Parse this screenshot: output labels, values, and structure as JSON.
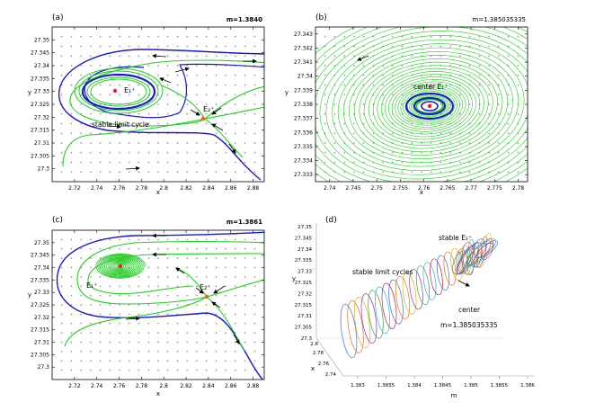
{
  "colors": {
    "green": "#22cc22",
    "blue": "#1a1acc",
    "red": "#ee2222",
    "orange": "#ee6600",
    "arrow": "#000000",
    "grid": "#8a8a8a",
    "frame": "#000000"
  },
  "chart_data": [
    {
      "id": "a",
      "type": "line",
      "label": "(a)",
      "param": "m=1.3840",
      "xlabel": "x",
      "ylabel": "y",
      "xlim": [
        2.7,
        2.89
      ],
      "ylim": [
        27.295,
        27.355
      ],
      "xticks": [
        "2.72",
        "2.74",
        "2.76",
        "2.78",
        "2.8",
        "2.82",
        "2.84",
        "2.86",
        "2.88"
      ],
      "yticks": [
        "27.3",
        "27.305",
        "27.31",
        "27.315",
        "27.32",
        "27.325",
        "27.33",
        "27.335",
        "27.34",
        "27.345",
        "27.35"
      ],
      "annotations": [
        "E₁⁺",
        "E₂⁺",
        "stable limit cycle"
      ],
      "points": {
        "E1": [
          2.762,
          27.328
        ],
        "E2": [
          2.838,
          27.3215
        ]
      }
    },
    {
      "id": "b",
      "type": "line",
      "label": "(b)",
      "param": "m=1.385035335",
      "xlabel": "x",
      "ylabel": "y",
      "xlim": [
        2.737,
        2.782
      ],
      "ylim": [
        27.3325,
        27.3435
      ],
      "xticks": [
        "2.74",
        "2.745",
        "2.75",
        "2.755",
        "2.76",
        "2.765",
        "2.77",
        "2.775",
        "2.78"
      ],
      "yticks": [
        "27.333",
        "27.334",
        "27.335",
        "27.336",
        "27.337",
        "27.338",
        "27.339",
        "27.34",
        "27.341",
        "27.342",
        "27.343"
      ],
      "annotations": [
        "center  E₁⁺"
      ],
      "points": {
        "E1": [
          2.7625,
          27.3378
        ]
      }
    },
    {
      "id": "c",
      "type": "line",
      "label": "(c)",
      "param": "m=1.3861",
      "xlabel": "x",
      "ylabel": "y",
      "xlim": [
        2.7,
        2.89
      ],
      "ylim": [
        27.295,
        27.355
      ],
      "xticks": [
        "2.72",
        "2.74",
        "2.76",
        "2.78",
        "2.8",
        "2.82",
        "2.84",
        "2.86",
        "2.88"
      ],
      "yticks": [
        "27.3",
        "27.305",
        "27.31",
        "27.315",
        "27.32",
        "27.325",
        "27.33",
        "27.335",
        "27.34",
        "27.345",
        "27.35"
      ],
      "annotations": [
        "E₁⁺",
        "E₂⁺"
      ],
      "points": {
        "E1": [
          2.765,
          27.3385
        ],
        "E2": [
          2.838,
          27.3265
        ]
      }
    },
    {
      "id": "d",
      "type": "line",
      "label": "(d)",
      "param": "m=1.385035335",
      "xlabel": "x",
      "ylabel": "y",
      "zlabel": "m",
      "mticks": [
        "1.383",
        "1.3835",
        "1.384",
        "1.3845",
        "1.385",
        "1.3855",
        "1.386"
      ],
      "xticks": [
        "2.74",
        "2.76",
        "2.78",
        "2.8"
      ],
      "yticks": [
        "27.3",
        "27.305",
        "27.31",
        "27.315",
        "27.32",
        "27.325",
        "27.33",
        "27.335",
        "27.34",
        "27.345",
        "27.35"
      ],
      "annotations": [
        "stable E₁⁺",
        "stable limit cycles",
        "center"
      ]
    }
  ]
}
